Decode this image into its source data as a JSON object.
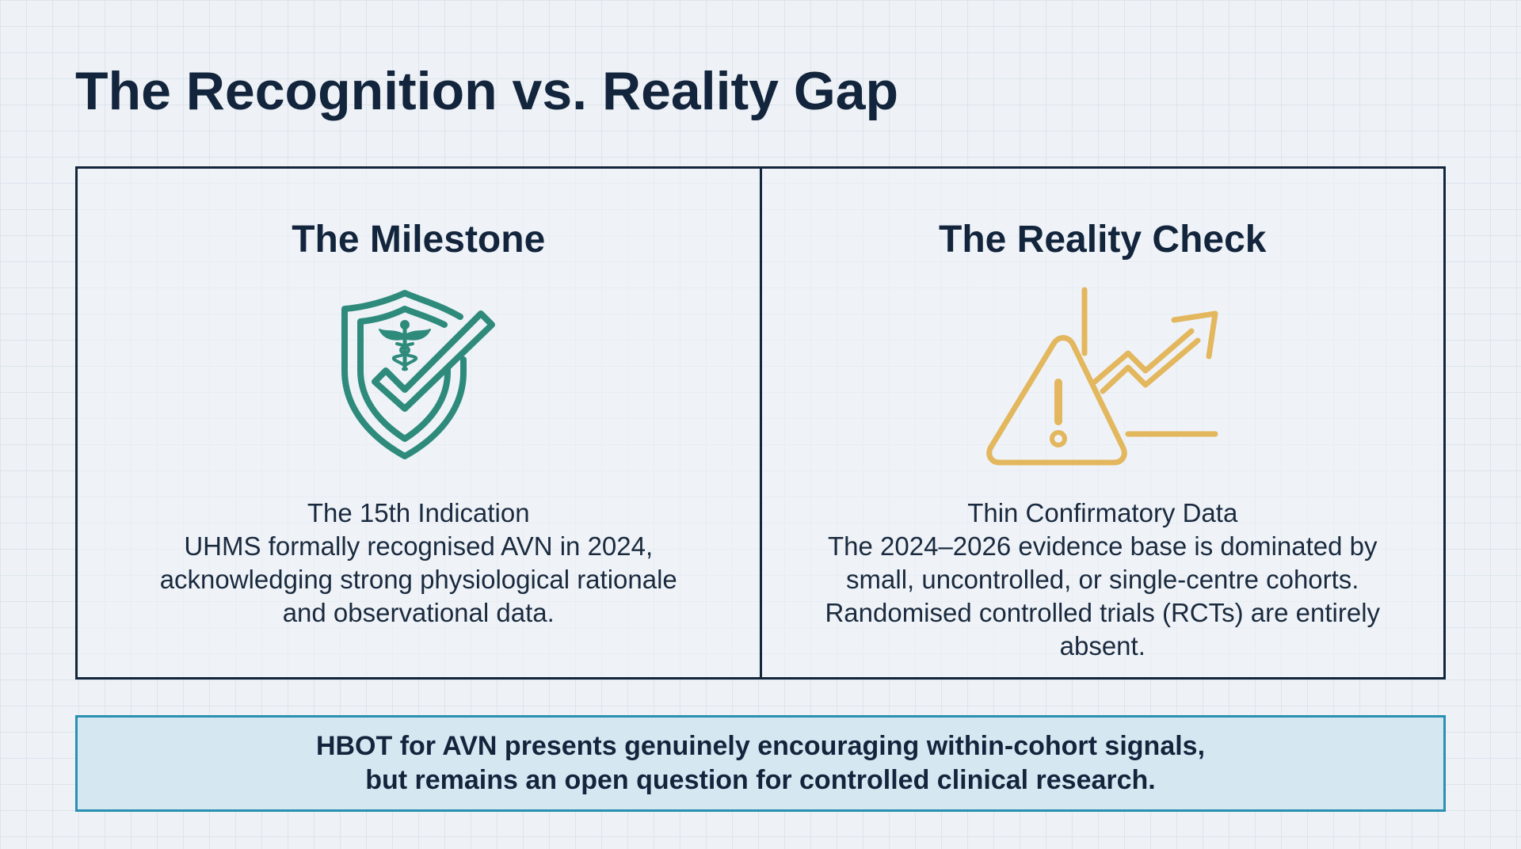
{
  "slide": {
    "title": "The Recognition vs. Reality Gap"
  },
  "panels": [
    {
      "heading": "The Milestone",
      "icon": "shield-check-caduceus-icon",
      "icon_color": "#2e8b7c",
      "subtitle": "The 15th Indication",
      "description": "UHMS formally recognised AVN in 2024, acknowledging strong physiological rationale and observational data."
    },
    {
      "heading": "The Reality Check",
      "icon": "warning-triangle-trend-icon",
      "icon_color": "#e3b75e",
      "subtitle": "Thin Confirmatory Data",
      "description": "The 2024–2026 evidence base is dominated by small, uncontrolled, or single-centre cohorts. Randomised controlled trials (RCTs) are entirely absent."
    }
  ],
  "callout": {
    "text": "HBOT for AVN presents genuinely encouraging within-cohort signals,\nbut remains an open question for controlled clinical research.",
    "border_color": "#2a8fb1",
    "background_color": "#d5e8f2"
  }
}
